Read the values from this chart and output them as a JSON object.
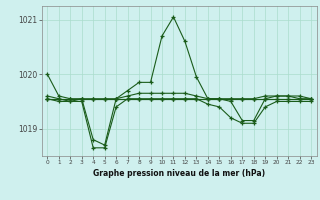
{
  "title": "Graphe pression niveau de la mer (hPa)",
  "bg_color": "#cff0ee",
  "grid_color": "#aaddcc",
  "line_color": "#1a5c1a",
  "hours": [
    0,
    1,
    2,
    3,
    4,
    5,
    6,
    7,
    8,
    9,
    10,
    11,
    12,
    13,
    14,
    15,
    16,
    17,
    18,
    19,
    20,
    21,
    22,
    23
  ],
  "line1": [
    1020.0,
    1019.6,
    1019.55,
    1019.55,
    1018.8,
    1018.7,
    1019.55,
    1019.7,
    1019.85,
    1019.85,
    1020.7,
    1021.05,
    1020.6,
    1019.95,
    1019.55,
    1019.55,
    1019.5,
    1019.15,
    1019.15,
    1019.55,
    1019.6,
    1019.6,
    1019.6,
    1019.55
  ],
  "line2": [
    1019.55,
    1019.55,
    1019.55,
    1019.55,
    1019.55,
    1019.55,
    1019.55,
    1019.55,
    1019.55,
    1019.55,
    1019.55,
    1019.55,
    1019.55,
    1019.55,
    1019.55,
    1019.55,
    1019.55,
    1019.55,
    1019.55,
    1019.55,
    1019.55,
    1019.55,
    1019.55,
    1019.55
  ],
  "line3": [
    1019.6,
    1019.55,
    1019.5,
    1019.5,
    1018.65,
    1018.65,
    1019.4,
    1019.55,
    1019.55,
    1019.55,
    1019.55,
    1019.55,
    1019.55,
    1019.55,
    1019.45,
    1019.4,
    1019.2,
    1019.1,
    1019.1,
    1019.4,
    1019.5,
    1019.5,
    1019.5,
    1019.5
  ],
  "line4": [
    1019.55,
    1019.5,
    1019.5,
    1019.55,
    1019.55,
    1019.55,
    1019.55,
    1019.6,
    1019.65,
    1019.65,
    1019.65,
    1019.65,
    1019.65,
    1019.6,
    1019.55,
    1019.55,
    1019.55,
    1019.55,
    1019.55,
    1019.6,
    1019.6,
    1019.6,
    1019.55,
    1019.55
  ],
  "line5": [
    1019.55,
    1019.55,
    1019.55,
    1019.55,
    1019.55,
    1019.55,
    1019.55,
    1019.55,
    1019.55,
    1019.55,
    1019.55,
    1019.55,
    1019.55,
    1019.55,
    1019.55,
    1019.55,
    1019.55,
    1019.55,
    1019.55,
    1019.55,
    1019.55,
    1019.55,
    1019.55,
    1019.55
  ],
  "ylim": [
    1018.5,
    1021.25
  ],
  "yticks": [
    1019,
    1020,
    1021
  ],
  "marker": "+",
  "figsize": [
    3.2,
    2.0
  ],
  "dpi": 100
}
